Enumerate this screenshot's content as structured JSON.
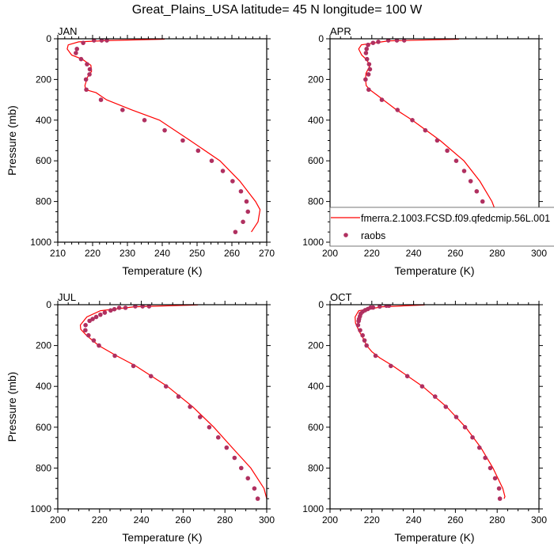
{
  "title": "Great_Plains_USA  latitude= 45 N longitude= 100 W",
  "legend": {
    "model_label": "fmerra.2.1003.FCSD.f09.qfedcmip.56L.001",
    "obs_label": "raobs",
    "model_color": "#ff0000",
    "obs_color": "#b03060"
  },
  "chart_data": [
    {
      "type": "line",
      "panel": "JAN",
      "xlabel": "Temperature (K)",
      "ylabel": "Pressure (mb)",
      "xlim": [
        210,
        270
      ],
      "xticks": [
        210,
        220,
        230,
        240,
        250,
        260,
        270
      ],
      "xminor": 2,
      "ylim": [
        0,
        1000
      ],
      "yticks": [
        0,
        200,
        400,
        600,
        800,
        1000
      ],
      "y_reversed": true,
      "model": {
        "T": [
          240.7,
          225,
          216,
          213,
          212.7,
          214,
          217,
          219.5,
          219.7,
          218.5,
          217.8,
          218,
          221,
          224,
          231.3,
          239.2,
          248,
          256.6,
          262.3,
          266.8,
          268.1,
          267.5,
          265.6
        ],
        "p": [
          2,
          8,
          15,
          30,
          50,
          80,
          100,
          130,
          160,
          190,
          230,
          250,
          265,
          300,
          350,
          400,
          500,
          600,
          700,
          800,
          840,
          900,
          950
        ]
      },
      "obs": {
        "T": [
          224.1,
          222.6,
          220.4,
          217.3,
          215.5,
          215.2,
          216.7,
          218.4,
          219.2,
          219.1,
          218.1,
          218.2,
          222.4,
          228.6,
          234.9,
          240.7,
          245.9,
          250.3,
          254.2,
          257.4,
          260.2,
          262.6,
          264.2,
          264.6,
          263.2,
          261.0
        ],
        "p": [
          8,
          8,
          8,
          20,
          50,
          70,
          100,
          125,
          150,
          175,
          200,
          250,
          300,
          350,
          400,
          450,
          500,
          550,
          600,
          650,
          700,
          750,
          800,
          850,
          900,
          950
        ]
      }
    },
    {
      "type": "line",
      "panel": "APR",
      "xlabel": "Temperature (K)",
      "ylabel": "",
      "xlim": [
        200,
        300
      ],
      "xticks": [
        200,
        220,
        240,
        260,
        280,
        300
      ],
      "xminor": 5,
      "ylim": [
        0,
        1000
      ],
      "yticks": [
        0,
        200,
        400,
        600,
        800,
        1000
      ],
      "y_reversed": true,
      "model": {
        "T": [
          261.7,
          228,
          215,
          213.7,
          215.2,
          217.2,
          219.2,
          217.2,
          217,
          217.3,
          219,
          222.9,
          231.8,
          239.3,
          252.7,
          264.1,
          271.7,
          277.5,
          281.2,
          282.6
        ],
        "p": [
          2,
          10,
          30,
          50,
          80,
          100,
          130,
          170,
          200,
          230,
          250,
          280,
          350,
          400,
          500,
          600,
          700,
          800,
          900,
          950
        ]
      },
      "obs": {
        "T": [
          235.5,
          232.0,
          227.9,
          223.1,
          220.6,
          218.2,
          217.5,
          217.2,
          217.7,
          218.7,
          219.1,
          218.4,
          217.0,
          218.5,
          224.8,
          232.3,
          239.4,
          245.6,
          251.3,
          256.1,
          260.4,
          264.2,
          267.3,
          270.2,
          273.0,
          275.4,
          277.9,
          279.5
        ],
        "p": [
          8,
          8,
          8,
          15,
          20,
          30,
          50,
          70,
          100,
          125,
          150,
          175,
          200,
          250,
          300,
          350,
          400,
          450,
          500,
          550,
          600,
          650,
          700,
          750,
          800,
          850,
          900,
          950
        ]
      }
    },
    {
      "type": "line",
      "panel": "JUL",
      "xlabel": "Temperature (K)",
      "ylabel": "Pressure (mb)",
      "xlim": [
        200,
        300
      ],
      "xticks": [
        200,
        220,
        240,
        260,
        280,
        300
      ],
      "xminor": 5,
      "ylim": [
        0,
        1000
      ],
      "yticks": [
        0,
        200,
        400,
        600,
        800,
        1000
      ],
      "y_reversed": true,
      "model": {
        "T": [
          267.1,
          236.7,
          220.3,
          213.9,
          210.8,
          211,
          213.7,
          219.6,
          228.1,
          237.3,
          252.5,
          264.6,
          274.7,
          283.5,
          292.4,
          298.7,
          300
        ],
        "p": [
          1,
          10,
          30,
          60,
          100,
          120,
          150,
          200,
          250,
          300,
          400,
          500,
          600,
          700,
          800,
          900,
          950
        ]
      },
      "obs": {
        "T": [
          243.7,
          240.6,
          237.1,
          232.4,
          229.4,
          227.1,
          225.3,
          222.5,
          220.4,
          218.4,
          216.7,
          215.2,
          213.3,
          213.2,
          214.7,
          217.2,
          219.7,
          227.3,
          236.2,
          244.6,
          251.8,
          257.8,
          263.3,
          268.1,
          272.5,
          276.8,
          280.8,
          284.6,
          287.8,
          291.0,
          294.1,
          295.7
        ],
        "p": [
          8,
          8,
          8,
          15,
          15,
          22,
          28,
          39,
          49,
          60,
          70,
          79,
          100,
          125,
          150,
          175,
          200,
          250,
          300,
          350,
          400,
          450,
          500,
          550,
          600,
          650,
          700,
          750,
          800,
          850,
          900,
          950
        ]
      }
    },
    {
      "type": "line",
      "panel": "OCT",
      "xlabel": "Temperature (K)",
      "ylabel": "",
      "xlim": [
        200,
        300
      ],
      "xticks": [
        200,
        220,
        240,
        260,
        280,
        300
      ],
      "xminor": 5,
      "ylim": [
        0,
        1000
      ],
      "yticks": [
        0,
        200,
        400,
        600,
        800,
        1000
      ],
      "y_reversed": true,
      "model": {
        "T": [
          245.3,
          225,
          213.7,
          212,
          212.2,
          213.9,
          216.2,
          217.5,
          220,
          223.8,
          230.1,
          244.3,
          255.8,
          264.9,
          272.2,
          278,
          282.7,
          283.7,
          283.3
        ],
        "p": [
          1,
          10,
          30,
          60,
          90,
          130,
          170,
          200,
          230,
          260,
          300,
          400,
          500,
          600,
          700,
          800,
          900,
          940,
          950
        ]
      },
      "obs": {
        "T": [
          228.2,
          227.0,
          223.8,
          220.6,
          219.4,
          218.1,
          216.8,
          215.6,
          214.7,
          214.3,
          213.9,
          213.7,
          213.4,
          214.4,
          215.6,
          216.5,
          217.5,
          221.8,
          229.1,
          237.0,
          244.1,
          250.3,
          255.4,
          260.4,
          264.6,
          268.2,
          271.5,
          274.3,
          276.7,
          279.0,
          280.9,
          281.3
        ],
        "p": [
          5,
          5,
          9,
          14,
          14,
          21,
          27,
          34,
          44,
          57,
          70,
          80,
          100,
          125,
          150,
          175,
          200,
          250,
          300,
          350,
          400,
          450,
          500,
          550,
          600,
          650,
          700,
          750,
          800,
          850,
          900,
          950
        ]
      }
    }
  ]
}
